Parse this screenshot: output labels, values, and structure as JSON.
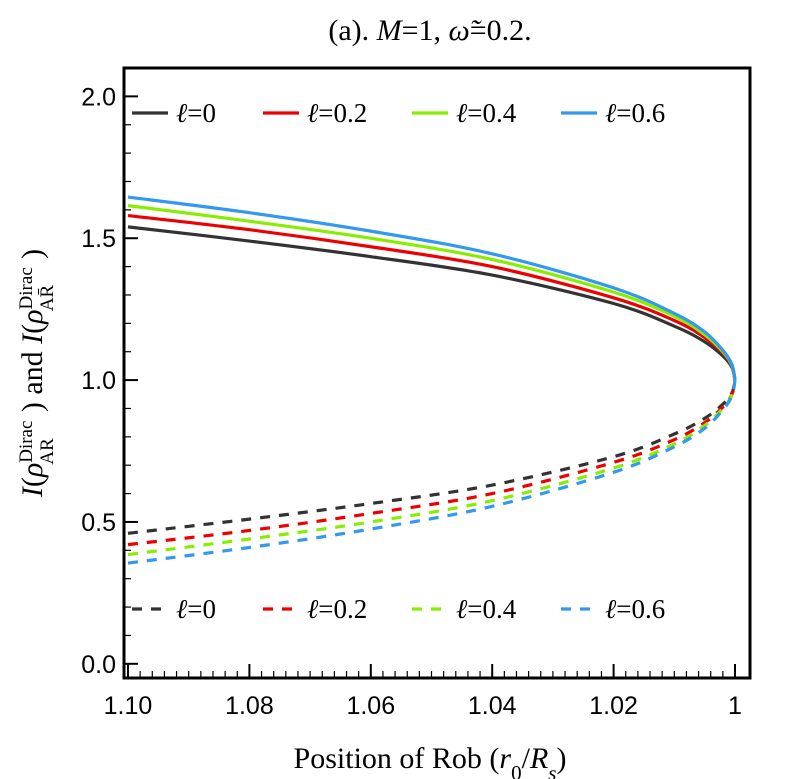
{
  "chart_data": {
    "type": "line",
    "title": "(a). M=1, ω̃=0.2.",
    "xlabel": "Position of Rob (r₀/Rₛ)",
    "ylabel": "I(ρ_AR^Dirac) and I(ρ_AR̄^Dirac)",
    "xlim": [
      1.1,
      1.0
    ],
    "ylim": [
      -0.05,
      2.1
    ],
    "x_reversed": true,
    "x_ticks": [
      "1.10",
      "1.08",
      "1.06",
      "1.04",
      "1.02",
      "1"
    ],
    "y_ticks": [
      "0.0",
      "0.5",
      "1.0",
      "1.5",
      "2.0"
    ],
    "grid": false,
    "legend_top": [
      "ℓ=0",
      "ℓ=0.2",
      "ℓ=0.4",
      "ℓ=0.6"
    ],
    "legend_bottom": [
      "ℓ=0",
      "ℓ=0.2",
      "ℓ=0.4",
      "ℓ=0.6"
    ],
    "colors": [
      "#333333",
      "#ee0000",
      "#88ee00",
      "#3399ee"
    ],
    "x": [
      1.1,
      1.08,
      1.06,
      1.04,
      1.02,
      1.01,
      1.005,
      1.002,
      1.0005,
      1.0
    ],
    "series": [
      {
        "name": "ℓ=0",
        "style": "solid",
        "color": "#333333",
        "values": [
          1.54,
          1.49,
          1.435,
          1.37,
          1.27,
          1.19,
          1.135,
          1.085,
          1.045,
          1.0
        ]
      },
      {
        "name": "ℓ=0.2",
        "style": "solid",
        "color": "#ee0000",
        "values": [
          1.58,
          1.53,
          1.47,
          1.4,
          1.29,
          1.21,
          1.15,
          1.095,
          1.05,
          1.0
        ]
      },
      {
        "name": "ℓ=0.4",
        "style": "solid",
        "color": "#88ee00",
        "values": [
          1.615,
          1.56,
          1.5,
          1.425,
          1.31,
          1.225,
          1.16,
          1.1,
          1.052,
          1.0
        ]
      },
      {
        "name": "ℓ=0.6",
        "style": "solid",
        "color": "#3399ee",
        "values": [
          1.645,
          1.59,
          1.525,
          1.445,
          1.325,
          1.235,
          1.17,
          1.105,
          1.055,
          1.0
        ]
      },
      {
        "name": "ℓ=0",
        "style": "dashed",
        "color": "#333333",
        "values": [
          0.46,
          0.51,
          0.565,
          0.63,
          0.73,
          0.81,
          0.865,
          0.915,
          0.955,
          1.0
        ]
      },
      {
        "name": "ℓ=0.2",
        "style": "dashed",
        "color": "#ee0000",
        "values": [
          0.42,
          0.47,
          0.53,
          0.6,
          0.71,
          0.79,
          0.85,
          0.905,
          0.95,
          1.0
        ]
      },
      {
        "name": "ℓ=0.4",
        "style": "dashed",
        "color": "#88ee00",
        "values": [
          0.385,
          0.44,
          0.5,
          0.575,
          0.69,
          0.775,
          0.84,
          0.9,
          0.948,
          1.0
        ]
      },
      {
        "name": "ℓ=0.6",
        "style": "dashed",
        "color": "#3399ee",
        "values": [
          0.355,
          0.41,
          0.475,
          0.555,
          0.675,
          0.765,
          0.83,
          0.895,
          0.945,
          1.0
        ]
      }
    ]
  }
}
